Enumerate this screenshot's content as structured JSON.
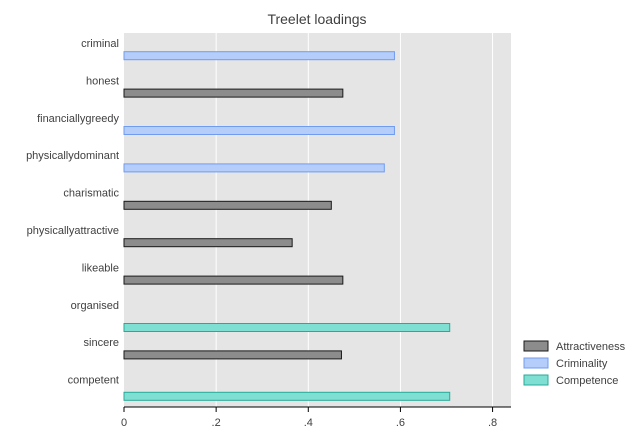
{
  "chart_data": {
    "type": "bar",
    "orientation": "horizontal",
    "title": "Treelet loadings",
    "xlabel": "",
    "ylabel": "",
    "xlim": [
      0,
      0.84
    ],
    "xticks": [
      0,
      0.2,
      0.4,
      0.6,
      0.8
    ],
    "xtick_labels": [
      "0",
      ".2",
      ".4",
      ".6",
      ".8"
    ],
    "grid": true,
    "legend_position": "bottom-right",
    "categories": [
      "criminal",
      "honest",
      "financiallygreedy",
      "physicallydominant",
      "charismatic",
      "physicallyattractive",
      "likeable",
      "organised",
      "sincere",
      "competent"
    ],
    "series": [
      {
        "name": "Attractiveness",
        "color": "#8c8c8c",
        "border": "#1a1a1a",
        "values": [
          null,
          0.475,
          null,
          null,
          0.45,
          0.365,
          0.475,
          null,
          0.472,
          null
        ]
      },
      {
        "name": "Criminality",
        "color": "#b5cdfb",
        "border": "#6f9cf0",
        "values": [
          0.587,
          null,
          0.587,
          0.565,
          null,
          null,
          null,
          null,
          null,
          null
        ]
      },
      {
        "name": "Competence",
        "color": "#7fdfd3",
        "border": "#2aa99a",
        "values": [
          null,
          null,
          null,
          null,
          null,
          null,
          null,
          0.707,
          null,
          0.707
        ]
      }
    ]
  }
}
